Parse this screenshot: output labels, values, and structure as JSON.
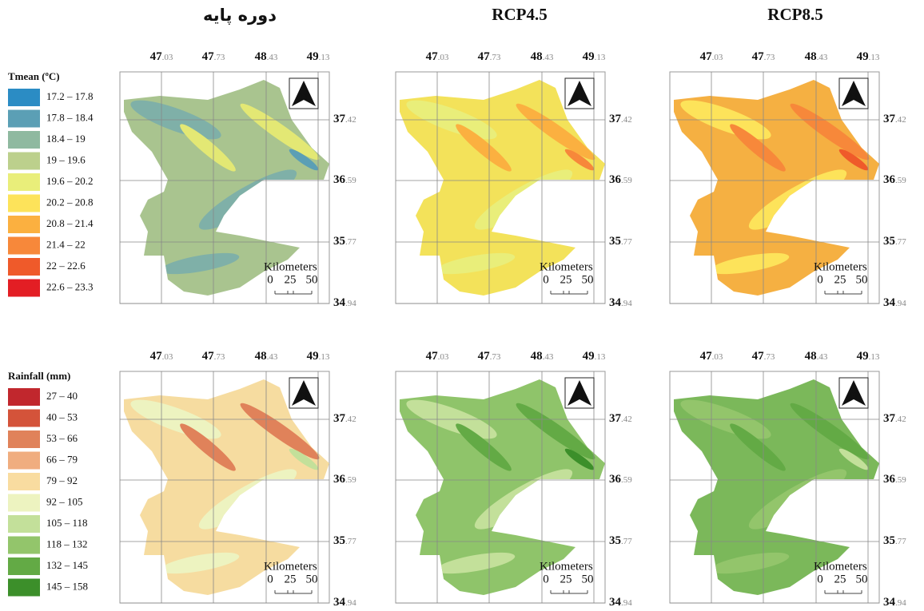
{
  "columns": [
    "دوره پایه",
    "RCP4.5",
    "RCP8.5"
  ],
  "legends": [
    {
      "title": "Tmean (ºC)",
      "items": [
        {
          "label": "17.2 – 17.8",
          "color": "#2b8cc4"
        },
        {
          "label": "17.8 – 18.4",
          "color": "#5b9fb5"
        },
        {
          "label": "18.4 – 19",
          "color": "#8fb9a0"
        },
        {
          "label": "19 – 19.6",
          "color": "#bcd08c"
        },
        {
          "label": "19.6 – 20.2",
          "color": "#e9ee7a"
        },
        {
          "label": "20.2 – 20.8",
          "color": "#fde35a"
        },
        {
          "label": "20.8 – 21.4",
          "color": "#fbb040"
        },
        {
          "label": "21.4 – 22",
          "color": "#f7883a"
        },
        {
          "label": "22 – 22.6",
          "color": "#ef5a2a"
        },
        {
          "label": "22.6 – 23.3",
          "color": "#e31e24"
        }
      ]
    },
    {
      "title": "Rainfall (mm)",
      "items": [
        {
          "label": "27 – 40",
          "color": "#c1272d"
        },
        {
          "label": "40 – 53",
          "color": "#d4533a"
        },
        {
          "label": "53 – 66",
          "color": "#e0825a"
        },
        {
          "label": "66 – 79",
          "color": "#f0ad7f"
        },
        {
          "label": "79 – 92",
          "color": "#f9dca0"
        },
        {
          "label": "92 – 105",
          "color": "#edf3c0"
        },
        {
          "label": "105 – 118",
          "color": "#c3e09a"
        },
        {
          "label": "118 – 132",
          "color": "#93c56b"
        },
        {
          "label": "132 – 145",
          "color": "#63aa45"
        },
        {
          "label": "145 – 158",
          "color": "#3c8f2a"
        }
      ]
    }
  ],
  "longitude": [
    {
      "whole": "47",
      "fraction": ".03"
    },
    {
      "whole": "47",
      "fraction": ".73"
    },
    {
      "whole": "48",
      "fraction": ".43"
    },
    {
      "whole": "49",
      "fraction": ".13"
    }
  ],
  "latitude": [
    {
      "whole": "37",
      "fraction": ".42"
    },
    {
      "whole": "36",
      "fraction": ".59"
    },
    {
      "whole": "35",
      "fraction": ".77"
    },
    {
      "whole": "34",
      "fraction": ".94"
    }
  ],
  "scale_bar": {
    "title": "Kilometers",
    "ticks": [
      "0",
      "25",
      "50"
    ]
  }
}
